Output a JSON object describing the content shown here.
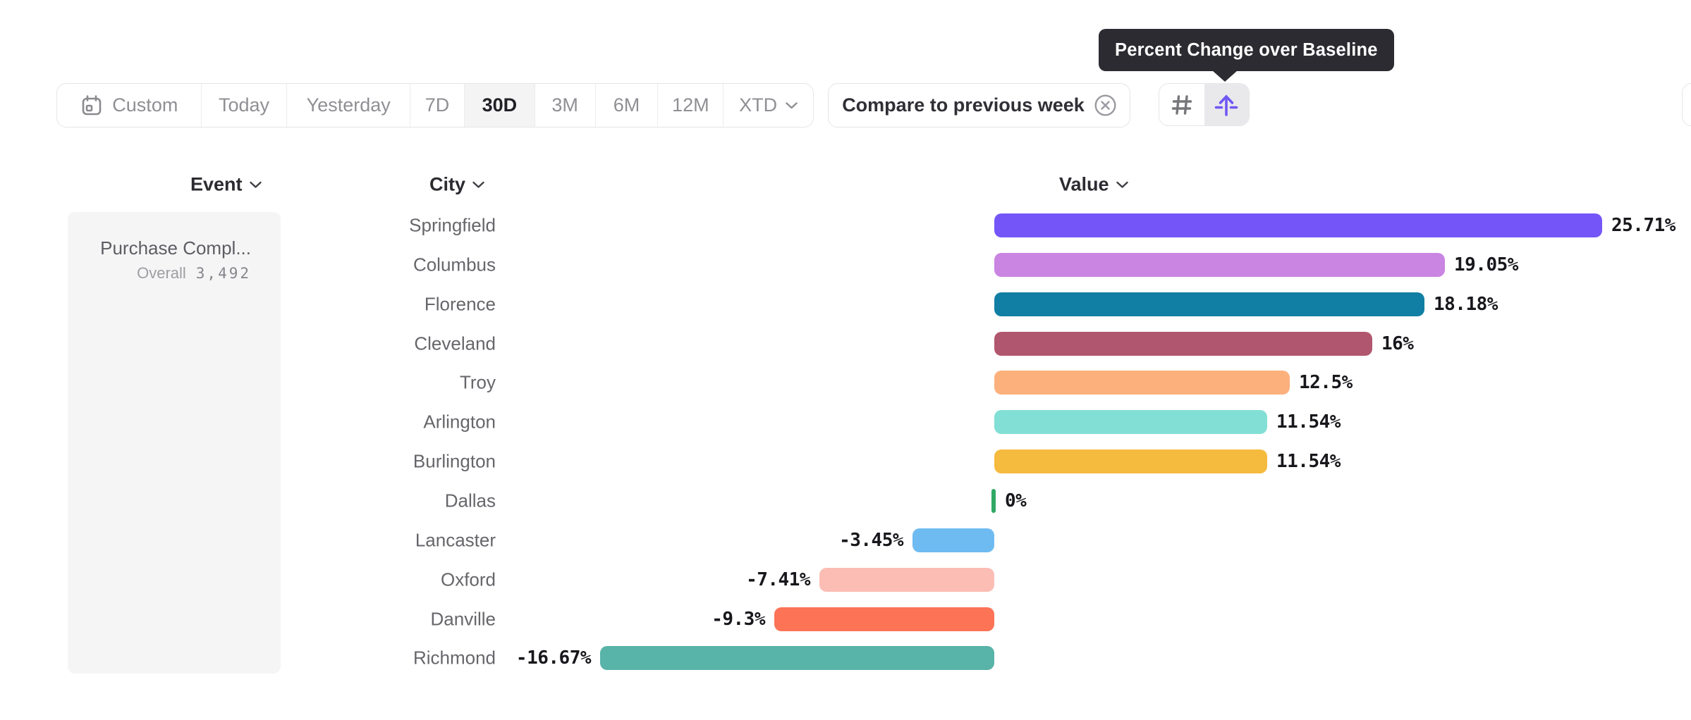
{
  "tooltip": {
    "text": "Percent Change over Baseline"
  },
  "toolbar": {
    "items": [
      {
        "id": "custom",
        "label": "Custom",
        "icon": "calendar-icon",
        "selected": false
      },
      {
        "id": "today",
        "label": "Today",
        "selected": false
      },
      {
        "id": "yesterday",
        "label": "Yesterday",
        "selected": false
      },
      {
        "id": "7d",
        "label": "7D",
        "selected": false
      },
      {
        "id": "30d",
        "label": "30D",
        "selected": true
      },
      {
        "id": "3m",
        "label": "3M",
        "selected": false
      },
      {
        "id": "6m",
        "label": "6M",
        "selected": false
      },
      {
        "id": "12m",
        "label": "12M",
        "selected": false
      },
      {
        "id": "xtd",
        "label": "XTD",
        "chevron": true,
        "selected": false
      }
    ]
  },
  "compare": {
    "label": "Compare to previous week",
    "icon": "remove-circle-icon"
  },
  "view_toggle": {
    "options": [
      {
        "id": "numbers",
        "icon": "hash-icon",
        "selected": false
      },
      {
        "id": "percent-change-over-baseline",
        "icon": "arrow-up-baseline-icon",
        "selected": true
      }
    ],
    "accent_color": "#6f57f3",
    "selected_bg": "#e9e9ec"
  },
  "columns": [
    {
      "label": "Event"
    },
    {
      "label": "City"
    },
    {
      "label": "Value"
    }
  ],
  "event_panel": {
    "event_name": "Purchase Compl...",
    "metric_label": "Overall",
    "metric_value": "3,492"
  },
  "chart_data": {
    "type": "bar",
    "orientation": "horizontal",
    "title": "Percent Change over Baseline",
    "value_unit": "%",
    "baseline": 0,
    "grid": false,
    "xlim": [
      -16.67,
      25.71
    ],
    "categories": [
      "Springfield",
      "Columbus",
      "Florence",
      "Cleveland",
      "Troy",
      "Arlington",
      "Burlington",
      "Dallas",
      "Lancaster",
      "Oxford",
      "Danville",
      "Richmond"
    ],
    "values": [
      25.71,
      19.05,
      18.18,
      16,
      12.5,
      11.54,
      11.54,
      0,
      -3.45,
      -7.41,
      -9.3,
      -16.67
    ],
    "value_labels": [
      "25.71%",
      "19.05%",
      "18.18%",
      "16%",
      "12.5%",
      "11.54%",
      "11.54%",
      "0%",
      "-3.45%",
      "-7.41%",
      "-9.3%",
      "-16.67%"
    ],
    "bar_colors": [
      "#7456f8",
      "#ca84e2",
      "#117ea3",
      "#b1566f",
      "#fcb17d",
      "#82dfd5",
      "#f5bb3f",
      "#31a865",
      "#6ebbf2",
      "#fbbdb4",
      "#fc7356",
      "#58b3a8"
    ],
    "value_label_color": "#17171c",
    "category_label_color": "#66666b"
  }
}
